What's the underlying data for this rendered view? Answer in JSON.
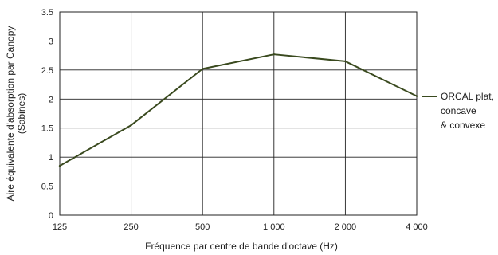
{
  "chart_data": {
    "type": "line",
    "title": "",
    "xlabel": "Fréquence par centre de bande d'octave (Hz)",
    "ylabel_line1": "Aire équivalente d'absorption par Canopy",
    "ylabel_line2": "(Sabines)",
    "categories": [
      "125",
      "250",
      "500",
      "1 000",
      "2 000",
      "4 000"
    ],
    "ylim": [
      0,
      3.5
    ],
    "yticks": [
      "0",
      "0.5",
      "1",
      "1.5",
      "2",
      "2.5",
      "3",
      "3.5"
    ],
    "grid": true,
    "legend_position": "right",
    "series": [
      {
        "name_lines": [
          "ORCAL plat,",
          "concave",
          "& convexe"
        ],
        "color": "#3a4a1f",
        "values": [
          0.85,
          1.55,
          2.52,
          2.77,
          2.65,
          2.05
        ]
      }
    ]
  }
}
